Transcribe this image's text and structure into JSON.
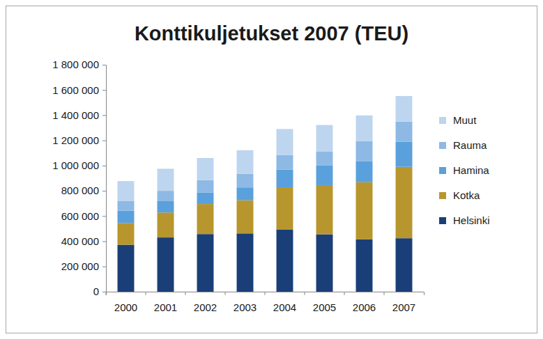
{
  "chart_data": {
    "type": "bar",
    "title": "Konttikuljetukset 2007 (TEU)",
    "stacked": true,
    "grid": false,
    "legend": "right",
    "categories": [
      "2000",
      "2001",
      "2002",
      "2003",
      "2004",
      "2005",
      "2006",
      "2007"
    ],
    "series": [
      {
        "name": "Helsinki",
        "color": "#1a3f78",
        "values": [
          372000,
          430000,
          457000,
          462000,
          494000,
          455000,
          416000,
          424000
        ]
      },
      {
        "name": "Kotka",
        "color": "#b8962e",
        "values": [
          173000,
          198000,
          238000,
          263000,
          334000,
          390000,
          452000,
          566000
        ]
      },
      {
        "name": "Hamina",
        "color": "#5aa0dc",
        "values": [
          98000,
          90000,
          90000,
          102000,
          140000,
          155000,
          165000,
          198000
        ]
      },
      {
        "name": "Rauma",
        "color": "#8db9e4",
        "values": [
          75000,
          82000,
          100000,
          108000,
          115000,
          113000,
          162000,
          162000
        ]
      },
      {
        "name": "Muut",
        "color": "#bdd5ef",
        "values": [
          159000,
          175000,
          175000,
          187000,
          207000,
          209000,
          203000,
          202000
        ]
      }
    ],
    "ylim": [
      0,
      1800000
    ],
    "yticks": [
      0,
      {
        "value": 200000,
        "label": "200 000"
      },
      {
        "value": 400000,
        "label": "400 000"
      },
      {
        "value": 600000,
        "label": "600 000"
      },
      {
        "value": 800000,
        "label": "800 000"
      },
      {
        "value": 1000000,
        "label": "1 000 000"
      },
      {
        "value": 1200000,
        "label": "1 200 000"
      },
      {
        "value": 1400000,
        "label": "1 400 000"
      },
      {
        "value": 1600000,
        "label": "1 600 000"
      },
      {
        "value": 1800000,
        "label": "1 800 000"
      }
    ]
  }
}
